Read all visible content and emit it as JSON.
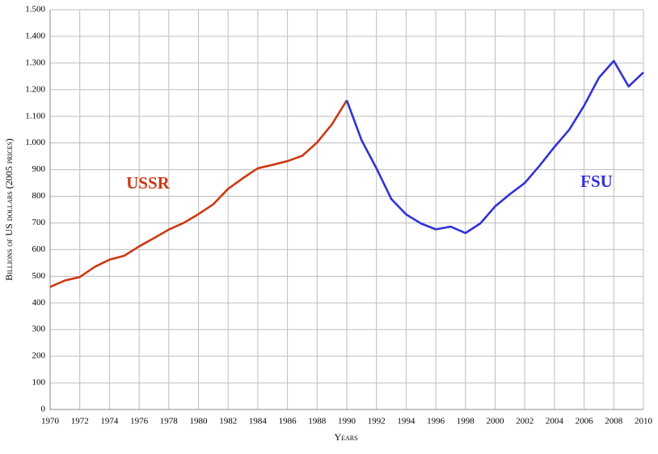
{
  "chart_data": {
    "type": "line",
    "x_label": "Years",
    "y_label": "Billions of US dollars (2005 prices)",
    "x": [
      1970,
      1971,
      1972,
      1973,
      1974,
      1975,
      1976,
      1977,
      1978,
      1979,
      1980,
      1981,
      1982,
      1983,
      1984,
      1985,
      1986,
      1987,
      1988,
      1989,
      1990,
      1991,
      1992,
      1993,
      1994,
      1995,
      1996,
      1997,
      1998,
      1999,
      2000,
      2001,
      2002,
      2003,
      2004,
      2005,
      2006,
      2007,
      2008,
      2009,
      2010
    ],
    "series": [
      {
        "name": "USSR",
        "color": "#cc3a14",
        "values": [
          460,
          484,
          497,
          535,
          562,
          577,
          612,
          643,
          675,
          700,
          733,
          770,
          828,
          868,
          905,
          918,
          932,
          952,
          1002,
          1070,
          1160,
          null,
          null,
          null,
          null,
          null,
          null,
          null,
          null,
          null,
          null,
          null,
          null,
          null,
          null,
          null,
          null,
          null,
          null,
          null,
          null
        ]
      },
      {
        "name": "FSU",
        "color": "#3232d8",
        "values": [
          null,
          null,
          null,
          null,
          null,
          null,
          null,
          null,
          null,
          null,
          null,
          null,
          null,
          null,
          null,
          null,
          null,
          null,
          null,
          null,
          1160,
          1010,
          905,
          790,
          732,
          698,
          676,
          686,
          662,
          698,
          762,
          808,
          850,
          915,
          985,
          1050,
          1140,
          1245,
          1308,
          1212,
          1265
        ]
      }
    ],
    "xlim": [
      1970,
      2010
    ],
    "xticks": [
      1970,
      1972,
      1974,
      1976,
      1978,
      1980,
      1982,
      1984,
      1986,
      1988,
      1990,
      1992,
      1994,
      1996,
      1998,
      2000,
      2002,
      2004,
      2006,
      2008,
      2010
    ],
    "ylim": [
      0,
      1500
    ],
    "yticks": [
      0,
      100,
      200,
      300,
      400,
      500,
      600,
      700,
      800,
      900,
      {
        "value": 1000,
        "label": "1.000"
      },
      {
        "value": 1100,
        "label": "1.100"
      },
      {
        "value": 1200,
        "label": "1.200"
      },
      {
        "value": 1300,
        "label": "1.300"
      },
      {
        "value": 1400,
        "label": "1.400"
      },
      {
        "value": 1500,
        "label": "1.500"
      }
    ],
    "grid": true
  }
}
